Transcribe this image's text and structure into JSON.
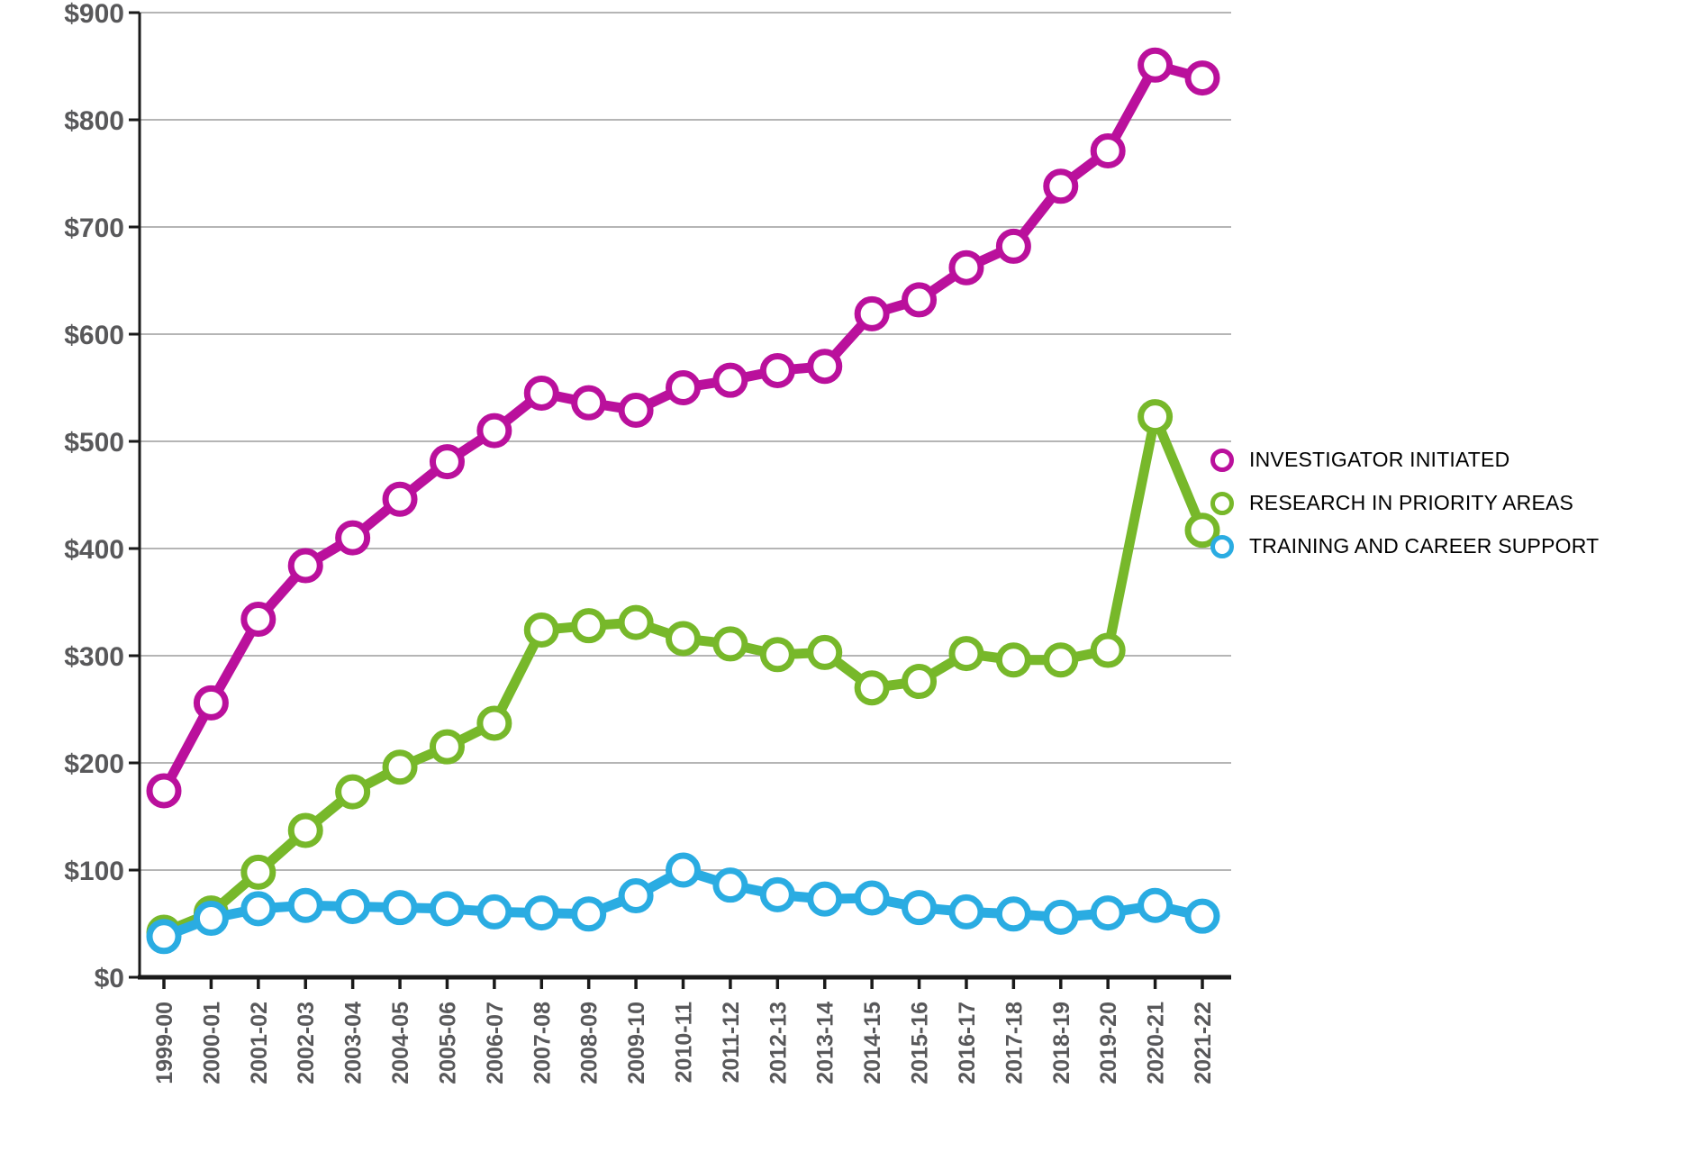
{
  "chart_data": {
    "type": "line",
    "title": "",
    "xlabel": "",
    "ylabel": "",
    "categories": [
      "1999-00",
      "2000-01",
      "2001-02",
      "2002-03",
      "2003-04",
      "2004-05",
      "2005-06",
      "2006-07",
      "2007-08",
      "2008-09",
      "2009-10",
      "2010-11",
      "2011-12",
      "2012-13",
      "2013-14",
      "2014-15",
      "2015-16",
      "2016-17",
      "2017-18",
      "2018-19",
      "2019-20",
      "2020-21",
      "2021-22"
    ],
    "series": [
      {
        "name": "INVESTIGATOR INITIATED",
        "color": "#ba109c",
        "values": [
          174,
          256,
          334,
          384,
          410,
          446,
          481,
          510,
          545,
          536,
          529,
          550,
          557,
          566,
          570,
          619,
          632,
          662,
          682,
          738,
          771,
          851,
          839
        ]
      },
      {
        "name": "RESEARCH IN PRIORITY AREAS",
        "color": "#77b82a",
        "values": [
          42,
          60,
          98,
          137,
          173,
          196,
          215,
          237,
          324,
          328,
          331,
          316,
          311,
          301,
          303,
          270,
          276,
          302,
          296,
          296,
          305,
          523,
          417
        ]
      },
      {
        "name": "TRAINING AND CAREER SUPPORT",
        "color": "#2aace2",
        "values": [
          38,
          55,
          64,
          67,
          66,
          65,
          64,
          61,
          60,
          59,
          76,
          100,
          86,
          77,
          73,
          74,
          65,
          61,
          59,
          56,
          60,
          67,
          57
        ]
      }
    ],
    "ylim": [
      0,
      900
    ],
    "y_tick_step": 100,
    "y_tick_labels": [
      "$0",
      "$100",
      "$200",
      "$300",
      "$400",
      "$500",
      "$600",
      "$700",
      "$800",
      "$900"
    ],
    "grid": true,
    "legend_position": "right",
    "colors": {
      "grid": "#b5b5b5",
      "axis": "#1a1a1a",
      "tick_label": "#58585a",
      "marker_fill": "#ffffff"
    }
  }
}
